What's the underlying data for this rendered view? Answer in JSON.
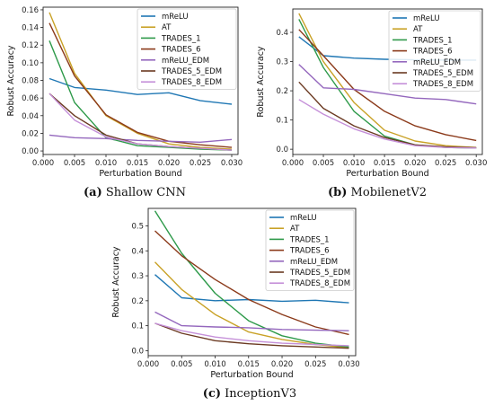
{
  "series_colors": {
    "mReLU": "#1f77b4",
    "AT": "#c9a227",
    "TRADES_1": "#2e9a4a",
    "TRADES_6": "#8b3a1a",
    "mReLU_EDM": "#9467bd",
    "TRADES_5_EDM": "#6b3a22",
    "TRADES_8_EDM": "#c590d9"
  },
  "chart_data": [
    {
      "type": "line",
      "caption_label": "(a)",
      "caption_text": "Shallow CNN",
      "xlabel": "Perturbation Bound",
      "ylabel": "Robust Accuracy",
      "xlim": [
        0.0,
        0.031
      ],
      "ylim": [
        -0.004,
        0.163
      ],
      "xticks": [
        "0.000",
        "0.005",
        "0.010",
        "0.015",
        "0.020",
        "0.025",
        "0.030"
      ],
      "yticks": [
        "0.00",
        "0.02",
        "0.04",
        "0.06",
        "0.08",
        "0.10",
        "0.12",
        "0.14",
        "0.16"
      ],
      "legend_position": "top-right",
      "x": [
        0.001,
        0.005,
        0.01,
        0.015,
        0.02,
        0.025,
        0.03
      ],
      "series": [
        {
          "name": "mReLU",
          "values": [
            0.082,
            0.072,
            0.069,
            0.064,
            0.066,
            0.057,
            0.053
          ]
        },
        {
          "name": "AT",
          "values": [
            0.157,
            0.088,
            0.04,
            0.02,
            0.008,
            0.004,
            0.002
          ]
        },
        {
          "name": "TRADES_1",
          "values": [
            0.125,
            0.055,
            0.015,
            0.006,
            0.004,
            0.002,
            0.001
          ]
        },
        {
          "name": "TRADES_6",
          "values": [
            0.145,
            0.085,
            0.041,
            0.021,
            0.011,
            0.007,
            0.004
          ]
        },
        {
          "name": "mReLU_EDM",
          "values": [
            0.018,
            0.015,
            0.014,
            0.012,
            0.011,
            0.01,
            0.013
          ]
        },
        {
          "name": "TRADES_5_EDM",
          "values": [
            0.065,
            0.04,
            0.018,
            0.008,
            0.005,
            0.003,
            0.001
          ]
        },
        {
          "name": "TRADES_8_EDM",
          "values": [
            0.065,
            0.035,
            0.016,
            0.008,
            0.005,
            0.003,
            0.001
          ]
        }
      ]
    },
    {
      "type": "line",
      "caption_label": "(b)",
      "caption_text": "MobilenetV2",
      "xlabel": "Perturbation Bound",
      "ylabel": "Robust Accuracy",
      "xlim": [
        0.0,
        0.031
      ],
      "ylim": [
        -0.018,
        0.48
      ],
      "xticks": [
        "0.000",
        "0.005",
        "0.010",
        "0.015",
        "0.020",
        "0.025",
        "0.030"
      ],
      "yticks": [
        "0.0",
        "0.1",
        "0.2",
        "0.3",
        "0.4"
      ],
      "legend_position": "top-right",
      "x": [
        0.001,
        0.005,
        0.01,
        0.015,
        0.02,
        0.025,
        0.03
      ],
      "series": [
        {
          "name": "mReLU",
          "values": [
            0.385,
            0.32,
            0.312,
            0.308,
            0.306,
            0.305,
            0.305
          ]
        },
        {
          "name": "AT",
          "values": [
            0.465,
            0.3,
            0.16,
            0.065,
            0.028,
            0.012,
            0.006
          ]
        },
        {
          "name": "TRADES_1",
          "values": [
            0.445,
            0.28,
            0.13,
            0.045,
            0.015,
            0.006,
            0.004
          ]
        },
        {
          "name": "TRADES_6",
          "values": [
            0.41,
            0.32,
            0.205,
            0.13,
            0.08,
            0.05,
            0.03
          ]
        },
        {
          "name": "mReLU_EDM",
          "values": [
            0.29,
            0.21,
            0.205,
            0.19,
            0.175,
            0.17,
            0.155
          ]
        },
        {
          "name": "TRADES_5_EDM",
          "values": [
            0.23,
            0.14,
            0.08,
            0.04,
            0.015,
            0.008,
            0.005
          ]
        },
        {
          "name": "TRADES_8_EDM",
          "values": [
            0.17,
            0.12,
            0.07,
            0.035,
            0.012,
            0.006,
            0.004
          ]
        }
      ]
    },
    {
      "type": "line",
      "caption_label": "(c)",
      "caption_text": "InceptionV3",
      "xlabel": "Perturbation Bound",
      "ylabel": "Robust Accuracy",
      "xlim": [
        0.0,
        0.031
      ],
      "ylim": [
        -0.02,
        0.57
      ],
      "xticks": [
        "0.000",
        "0.005",
        "0.010",
        "0.015",
        "0.020",
        "0.025",
        "0.030"
      ],
      "yticks": [
        "0.0",
        "0.1",
        "0.2",
        "0.3",
        "0.4",
        "0.5"
      ],
      "legend_position": "top-right",
      "x": [
        0.001,
        0.005,
        0.01,
        0.015,
        0.02,
        0.025,
        0.03
      ],
      "series": [
        {
          "name": "mReLU",
          "values": [
            0.305,
            0.212,
            0.2,
            0.205,
            0.198,
            0.202,
            0.192
          ]
        },
        {
          "name": "AT",
          "values": [
            0.355,
            0.245,
            0.145,
            0.075,
            0.045,
            0.025,
            0.012
          ]
        },
        {
          "name": "TRADES_1",
          "values": [
            0.56,
            0.39,
            0.23,
            0.12,
            0.06,
            0.03,
            0.015
          ]
        },
        {
          "name": "TRADES_6",
          "values": [
            0.48,
            0.38,
            0.285,
            0.205,
            0.145,
            0.095,
            0.065
          ]
        },
        {
          "name": "mReLU_EDM",
          "values": [
            0.155,
            0.1,
            0.095,
            0.092,
            0.085,
            0.082,
            0.08
          ]
        },
        {
          "name": "TRADES_5_EDM",
          "values": [
            0.11,
            0.07,
            0.04,
            0.028,
            0.02,
            0.015,
            0.01
          ]
        },
        {
          "name": "TRADES_8_EDM",
          "values": [
            0.11,
            0.08,
            0.055,
            0.04,
            0.03,
            0.025,
            0.02
          ]
        }
      ]
    }
  ]
}
